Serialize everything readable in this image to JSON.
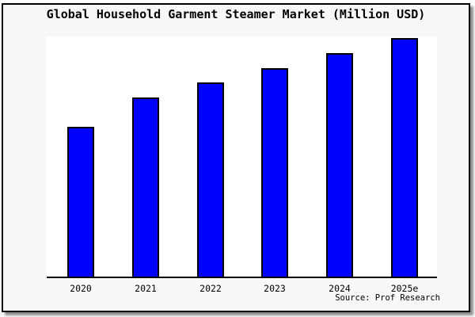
{
  "figure": {
    "title": "Global Household Garment Steamer Market (Million USD)",
    "source_note": "Source: Prof Research",
    "background_color": "#f8f8f8",
    "plot_background_color": "#ffffff",
    "frame_border_color": "#000000"
  },
  "chart_data": {
    "type": "bar",
    "title": "Global Household Garment Steamer Market (Million USD)",
    "categories": [
      "2020",
      "2021",
      "2022",
      "2023",
      "2024",
      "2025e"
    ],
    "values": [
      62.8,
      75.1,
      81.4,
      87.4,
      93.7,
      100
    ],
    "value_scale": "relative index; chart shows no y-axis ticks or numeric labels, max bar (2025e) = 100",
    "series_name": "Global Household Garment Steamer Market (Million USD)",
    "xlabel": "",
    "ylabel": "",
    "ylim": [
      0,
      101.5
    ],
    "grid": false,
    "legend": null,
    "y_axis_labels_visible": false,
    "bar_color": "#0000ff",
    "bar_edge_color": "#000000",
    "annotations": [
      "Source: Prof Research"
    ]
  }
}
